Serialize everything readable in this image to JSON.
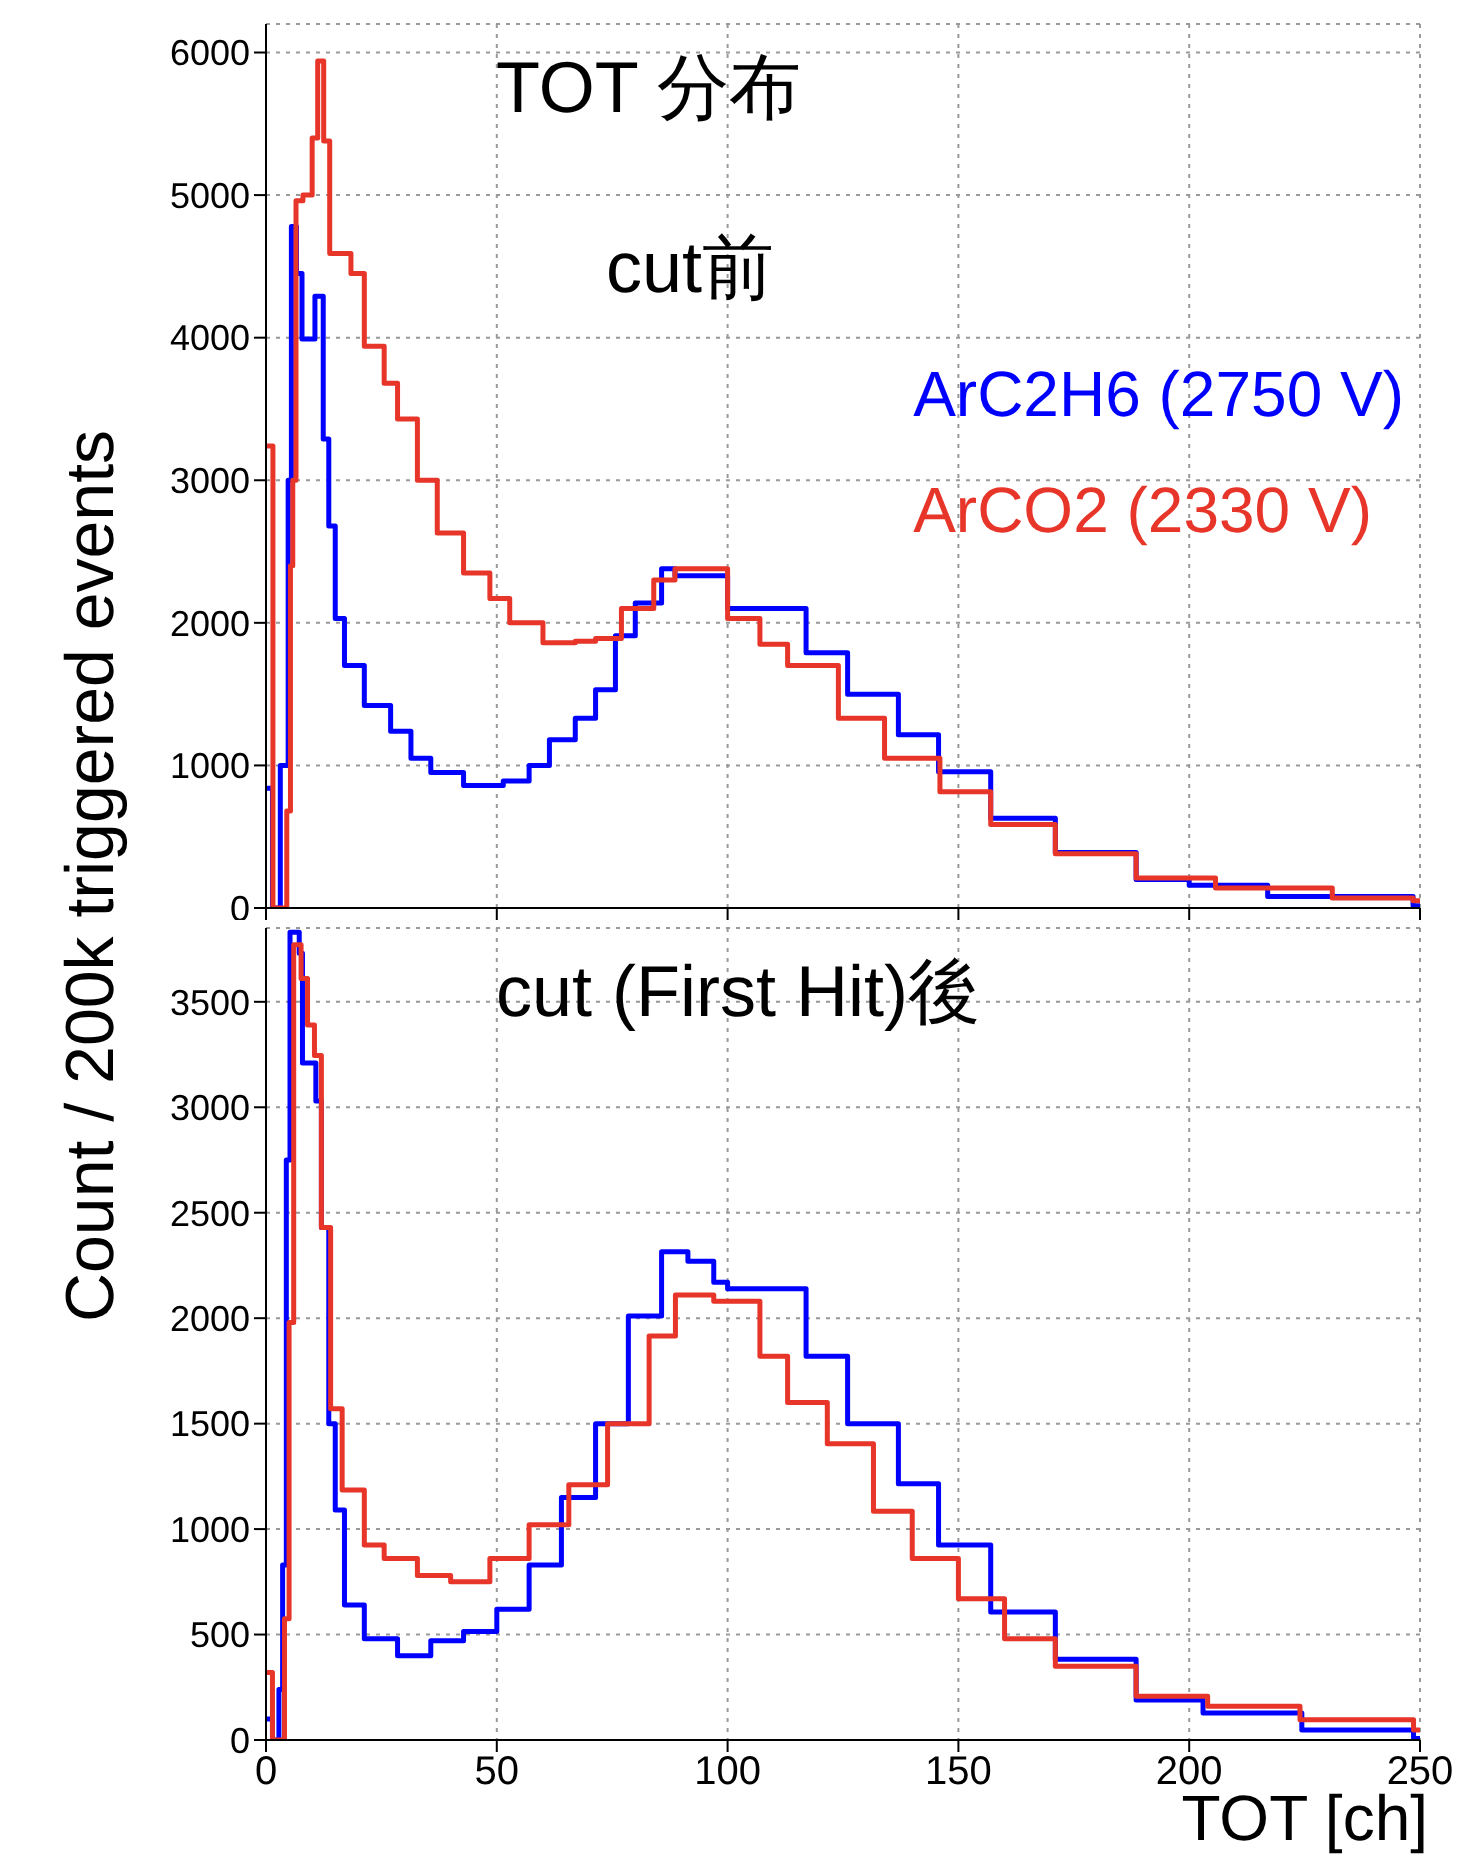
{
  "chart_data": [
    {
      "type": "step",
      "annotations": [
        "TOT 分布",
        "cut前"
      ],
      "ylabel": "Count / 200k triggered events",
      "xlim": [
        0,
        250
      ],
      "xticks": [
        0,
        50,
        100,
        150,
        200,
        250
      ],
      "ylim": [
        0,
        6200
      ],
      "yticks": [
        0,
        1000,
        2000,
        3000,
        4000,
        5000,
        6000
      ],
      "grid": true,
      "legend": "top right",
      "tick_labels": "y",
      "series": [
        {
          "name": "ArC2H6 (2750 V)",
          "color": "#0000ff",
          "x": [
            0,
            1.4,
            3.1,
            4.8,
            5.5,
            6.6,
            7.8,
            10.6,
            12.4,
            13.6,
            15,
            17,
            21.3,
            27,
            31.4,
            35.7,
            42.8,
            47,
            51.4,
            57,
            61.4,
            67,
            71.4,
            75.7,
            80,
            85.7,
            88.6,
            100,
            117,
            126,
            137,
            145.7,
            157,
            171,
            188.5,
            200,
            217,
            248.5,
            250
          ],
          "values": [
            840,
            0,
            1000,
            3000,
            4780,
            4450,
            3990,
            4290,
            3290,
            2680,
            2030,
            1700,
            1420,
            1240,
            1050,
            950,
            860,
            860,
            890,
            1000,
            1180,
            1330,
            1530,
            1910,
            2140,
            2380,
            2330,
            2100,
            1790,
            1500,
            1215,
            955,
            630,
            390,
            200,
            160,
            80,
            15,
            15
          ]
        },
        {
          "name": "ArCO2 (2330 V)",
          "color": "#e8352a",
          "x": [
            0,
            1.5,
            4.5,
            5.3,
            5.8,
            6.5,
            8,
            10,
            11.2,
            12.5,
            13.8,
            18.4,
            21.3,
            25.6,
            28.5,
            32.8,
            37.1,
            42.8,
            48.5,
            52.8,
            60,
            67,
            71.4,
            77,
            84,
            88.6,
            100,
            107,
            113,
            124,
            134,
            146,
            157,
            171,
            188.5,
            205.7,
            231,
            248.5,
            250
          ],
          "values": [
            3240,
            0,
            680,
            2400,
            3000,
            4960,
            5000,
            5400,
            5940,
            5380,
            4590,
            4450,
            3940,
            3680,
            3430,
            3000,
            2630,
            2350,
            2170,
            2000,
            1860,
            1870,
            1890,
            2100,
            2300,
            2380,
            2030,
            1850,
            1700,
            1330,
            1050,
            815,
            585,
            380,
            210,
            140,
            70,
            50,
            50
          ]
        }
      ]
    },
    {
      "type": "step",
      "annotations": [
        "cut (First Hit)後"
      ],
      "xlabel": "TOT [ch]",
      "xlim": [
        0,
        250
      ],
      "xticks": [
        0,
        50,
        100,
        150,
        200,
        250
      ],
      "ylim": [
        0,
        3850
      ],
      "yticks": [
        0,
        500,
        1000,
        1500,
        2000,
        2500,
        3000,
        3500
      ],
      "grid": true,
      "series": [
        {
          "color": "#0000ff",
          "x": [
            0,
            1.4,
            2.8,
            3.6,
            4.4,
            5.2,
            7.2,
            7.9,
            10.8,
            12,
            13.6,
            15,
            17,
            21.3,
            28.5,
            35.7,
            42.8,
            50,
            57,
            64,
            71.4,
            78.5,
            85.7,
            91.4,
            97,
            100,
            117,
            126,
            137,
            145.7,
            157,
            171,
            188.5,
            203,
            224.4,
            248.6,
            250
          ],
          "values": [
            100,
            0,
            240,
            830,
            2750,
            3830,
            3730,
            3210,
            3030,
            2430,
            1500,
            1090,
            640,
            480,
            400,
            470,
            515,
            620,
            830,
            1150,
            1500,
            2010,
            2315,
            2270,
            2170,
            2140,
            1820,
            1500,
            1215,
            925,
            607,
            383,
            190,
            128,
            48,
            7,
            7
          ]
        },
        {
          "color": "#e8352a",
          "x": [
            0,
            1.4,
            4,
            5,
            6,
            7.6,
            9,
            10.5,
            12,
            14,
            16.5,
            21.3,
            25.6,
            32.8,
            40,
            48.5,
            57,
            65.6,
            74,
            83,
            88.7,
            97,
            107,
            113,
            121.6,
            131.6,
            140,
            150,
            160,
            171,
            188.5,
            204,
            224,
            248.6,
            250
          ],
          "values": [
            320,
            0,
            575,
            1980,
            3770,
            3610,
            3390,
            3245,
            2430,
            1570,
            1185,
            925,
            860,
            780,
            750,
            860,
            1020,
            1210,
            1500,
            1915,
            2110,
            2080,
            1820,
            1600,
            1405,
            1085,
            860,
            670,
            480,
            350,
            208,
            160,
            96,
            48,
            48
          ]
        }
      ]
    }
  ]
}
